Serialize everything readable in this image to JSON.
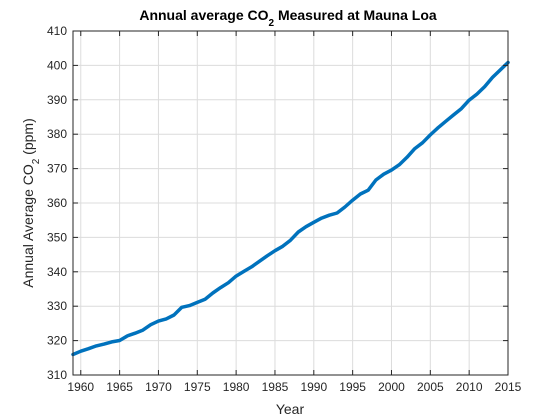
{
  "chart_data": {
    "type": "line",
    "title": "Annual average CO",
    "title_subscript": "2",
    "title_suffix": " Measured at Mauna Loa",
    "xlabel": "Year",
    "ylabel": "Annual Average CO",
    "ylabel_subscript": "2",
    "ylabel_suffix": " (ppm)",
    "xlim": [
      1959,
      2015
    ],
    "ylim": [
      310,
      410
    ],
    "xticks": [
      1960,
      1965,
      1970,
      1975,
      1980,
      1985,
      1990,
      1995,
      2000,
      2005,
      2010,
      2015
    ],
    "yticks": [
      310,
      320,
      330,
      340,
      350,
      360,
      370,
      380,
      390,
      400,
      410
    ],
    "grid": true,
    "series": [
      {
        "color": "#0072bd",
        "x": [
          1959,
          1960,
          1961,
          1962,
          1963,
          1964,
          1965,
          1966,
          1967,
          1968,
          1969,
          1970,
          1971,
          1972,
          1973,
          1974,
          1975,
          1976,
          1977,
          1978,
          1979,
          1980,
          1981,
          1982,
          1983,
          1984,
          1985,
          1986,
          1987,
          1988,
          1989,
          1990,
          1991,
          1992,
          1993,
          1994,
          1995,
          1996,
          1997,
          1998,
          1999,
          2000,
          2001,
          2002,
          2003,
          2004,
          2005,
          2006,
          2007,
          2008,
          2009,
          2010,
          2011,
          2012,
          2013,
          2014,
          2015
        ],
        "y": [
          315.97,
          316.91,
          317.64,
          318.45,
          318.99,
          319.62,
          320.04,
          321.38,
          322.16,
          323.04,
          324.62,
          325.68,
          326.32,
          327.45,
          329.68,
          330.18,
          331.11,
          332.04,
          333.83,
          335.4,
          336.84,
          338.75,
          340.11,
          341.45,
          343.05,
          344.65,
          346.12,
          347.42,
          349.19,
          351.57,
          353.12,
          354.39,
          355.61,
          356.45,
          357.1,
          358.83,
          360.82,
          362.61,
          363.73,
          366.7,
          368.38,
          369.55,
          371.14,
          373.28,
          375.8,
          377.52,
          379.8,
          381.9,
          383.79,
          385.6,
          387.43,
          389.9,
          391.65,
          393.85,
          396.52,
          398.65,
          400.83
        ]
      }
    ]
  }
}
